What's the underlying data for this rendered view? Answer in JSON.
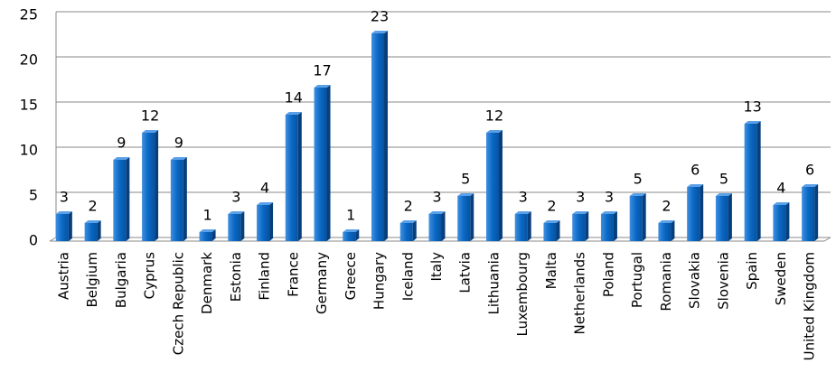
{
  "chart_data": {
    "type": "bar",
    "categories": [
      "Austria",
      "Belgium",
      "Bulgaria",
      "Cyprus",
      "Czech Republic",
      "Denmark",
      "Estonia",
      "Finland",
      "France",
      "Germany",
      "Greece",
      "Hungary",
      "Iceland",
      "Italy",
      "Latvia",
      "Lithuania",
      "Luxembourg",
      "Malta",
      "Netherlands",
      "Poland",
      "Portugal",
      "Romania",
      "Slovakia",
      "Slovenia",
      "Spain",
      "Sweden",
      "United Kingdom"
    ],
    "values": [
      3,
      2,
      9,
      12,
      9,
      1,
      3,
      4,
      14,
      17,
      1,
      23,
      2,
      3,
      5,
      12,
      3,
      2,
      3,
      3,
      5,
      2,
      6,
      5,
      13,
      4,
      6
    ],
    "color": "#0a68c4",
    "ylim": [
      0,
      25
    ],
    "yticks": [
      0,
      5,
      10,
      15,
      20,
      25
    ],
    "grid": true
  }
}
